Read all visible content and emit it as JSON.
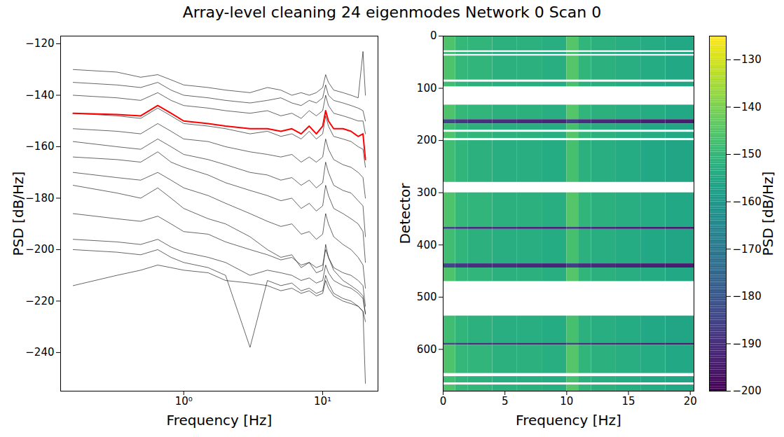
{
  "title": "Array-level cleaning 24 eigenmodes Network 0 Scan 0",
  "chart_data": [
    {
      "type": "line",
      "xlabel": "Frequency [Hz]",
      "ylabel": "PSD [dB/Hz]",
      "log": "x",
      "xlim": [
        0.13,
        25
      ],
      "xticks": [
        {
          "value": 1,
          "label": "10⁰"
        },
        {
          "value": 10,
          "label": "10¹"
        }
      ],
      "ylim": [
        -255,
        -117
      ],
      "yticks": [
        -240,
        -220,
        -200,
        -180,
        -160,
        -140,
        -120
      ],
      "x": [
        0.16,
        0.33,
        0.49,
        0.65,
        0.81,
        1.0,
        1.5,
        2,
        3,
        4,
        5,
        6,
        7,
        8,
        9,
        10,
        10.5,
        11,
        12,
        14,
        16,
        18,
        19.5,
        20.3
      ],
      "series": [
        {
          "color": "black",
          "values": [
            -130,
            -131,
            -133,
            -132,
            -134,
            -136,
            -137,
            -138,
            -139,
            -137,
            -138,
            -140,
            -139,
            -140,
            -139,
            -137,
            -132,
            -135,
            -138,
            -139,
            -140,
            -141,
            -123,
            -140
          ]
        },
        {
          "color": "black",
          "values": [
            -135,
            -136,
            -137,
            -135,
            -138,
            -140,
            -141,
            -142,
            -143,
            -142,
            -141,
            -143,
            -144,
            -142,
            -143,
            -141,
            -136,
            -140,
            -142,
            -143,
            -144,
            -145,
            -146,
            -150
          ]
        },
        {
          "color": "black",
          "values": [
            -140,
            -141,
            -142,
            -139,
            -142,
            -144,
            -145,
            -146,
            -147,
            -146,
            -148,
            -147,
            -149,
            -146,
            -148,
            -146,
            -140,
            -144,
            -147,
            -148,
            -149,
            -150,
            -150,
            -155
          ]
        },
        {
          "color": "black",
          "values": [
            -147,
            -148,
            -149,
            -145,
            -148,
            -151,
            -152,
            -153,
            -155,
            -154,
            -156,
            -155,
            -157,
            -154,
            -157,
            -155,
            -148,
            -152,
            -156,
            -157,
            -158,
            -160,
            -161,
            -168
          ]
        },
        {
          "color": "black",
          "values": [
            -153,
            -154,
            -155,
            -151,
            -154,
            -157,
            -158,
            -160,
            -162,
            -163,
            -164,
            -163,
            -166,
            -164,
            -166,
            -164,
            -157,
            -161,
            -165,
            -167,
            -168,
            -170,
            -172,
            -180
          ]
        },
        {
          "color": "black",
          "values": [
            -158,
            -160,
            -161,
            -157,
            -160,
            -163,
            -165,
            -167,
            -170,
            -171,
            -173,
            -172,
            -175,
            -173,
            -176,
            -174,
            -166,
            -170,
            -175,
            -177,
            -178,
            -181,
            -183,
            -195
          ]
        },
        {
          "color": "black",
          "values": [
            -164,
            -165,
            -166,
            -162,
            -166,
            -168,
            -171,
            -174,
            -177,
            -179,
            -181,
            -180,
            -184,
            -182,
            -185,
            -183,
            -175,
            -179,
            -184,
            -186,
            -188,
            -190,
            -193,
            -205
          ]
        },
        {
          "color": "black",
          "values": [
            -170,
            -172,
            -173,
            -170,
            -173,
            -176,
            -179,
            -182,
            -186,
            -189,
            -191,
            -190,
            -194,
            -193,
            -196,
            -194,
            -186,
            -190,
            -195,
            -198,
            -200,
            -203,
            -206,
            -215
          ]
        },
        {
          "color": "black",
          "values": [
            -175,
            -178,
            -180,
            -176,
            -180,
            -184,
            -188,
            -190,
            -195,
            -200,
            -203,
            -202,
            -207,
            -205,
            -209,
            -208,
            -198,
            -203,
            -208,
            -212,
            -214,
            -216,
            -218,
            -225
          ]
        },
        {
          "color": "black",
          "values": [
            -186,
            -188,
            -189,
            -187,
            -190,
            -193,
            -194,
            -197,
            -200,
            -202,
            -204,
            -203,
            -206,
            -205,
            -207,
            -206,
            -200,
            -203,
            -207,
            -209,
            -210,
            -212,
            -214,
            -222
          ]
        },
        {
          "color": "black",
          "values": [
            -196,
            -197,
            -198,
            -196,
            -199,
            -201,
            -203,
            -205,
            -210,
            -208,
            -209,
            -210,
            -212,
            -211,
            -213,
            -212,
            -206,
            -209,
            -212,
            -214,
            -215,
            -217,
            -219,
            -225
          ]
        },
        {
          "color": "black",
          "values": [
            -200,
            -201,
            -202,
            -200,
            -203,
            -205,
            -207,
            -210,
            -238,
            -212,
            -214,
            -213,
            -216,
            -215,
            -217,
            -216,
            -210,
            -213,
            -217,
            -219,
            -220,
            -222,
            -224,
            -228
          ]
        },
        {
          "color": "black",
          "values": [
            -214,
            -210,
            -208,
            -206,
            -207,
            -208,
            -209,
            -212,
            -213,
            -214,
            -216,
            -215,
            -217,
            -216,
            -218,
            -217,
            -212,
            -215,
            -218,
            -220,
            -221,
            -222,
            -224,
            -252
          ]
        },
        {
          "color": "red",
          "values": [
            -147,
            -147.5,
            -148,
            -144,
            -147,
            -150,
            -151,
            -152,
            -153,
            -153,
            -154,
            -153,
            -155,
            -152,
            -155,
            -152,
            -146,
            -150,
            -153,
            -153,
            -154,
            -156,
            -155,
            -165
          ]
        }
      ]
    },
    {
      "type": "heatmap",
      "xlabel": "Frequency [Hz]",
      "ylabel": "Detector",
      "xlim": [
        0,
        20.3
      ],
      "xticks": [
        0,
        5,
        10,
        15,
        20
      ],
      "ylim": [
        0,
        680
      ],
      "yticks": [
        0,
        100,
        200,
        300,
        400,
        500,
        600
      ],
      "x_edges": [
        0,
        1,
        2,
        4,
        6,
        8,
        10,
        11,
        12,
        14,
        16,
        18,
        20.3
      ],
      "y_edges": [
        0,
        28,
        31,
        35,
        38,
        84,
        88,
        97,
        132,
        160,
        168,
        180,
        184,
        196,
        200,
        280,
        300,
        366,
        370,
        436,
        444,
        470,
        536,
        588,
        592,
        646,
        652,
        664,
        668,
        680
      ],
      "cells": [
        [
          -146,
          -150,
          -151,
          -152,
          -152,
          -153,
          -145,
          -151,
          -152,
          -153,
          -154,
          -155
        ],
        [
          null,
          null,
          null,
          null,
          null,
          null,
          null,
          null,
          null,
          null,
          null,
          null
        ],
        [
          -148,
          -151,
          -152,
          -153,
          -153,
          -154,
          -147,
          -152,
          -153,
          -154,
          -155,
          -156
        ],
        [
          null,
          null,
          null,
          null,
          null,
          null,
          null,
          null,
          null,
          null,
          null,
          null
        ],
        [
          -146,
          -150,
          -151,
          -152,
          -152,
          -153,
          -145,
          -151,
          -152,
          -153,
          -154,
          -155
        ],
        [
          null,
          null,
          null,
          null,
          null,
          null,
          null,
          null,
          null,
          null,
          null,
          null
        ],
        [
          -148,
          -151,
          -152,
          -153,
          -153,
          -154,
          -147,
          -152,
          -153,
          -154,
          -155,
          -156
        ],
        [
          null,
          null,
          null,
          null,
          null,
          null,
          null,
          null,
          null,
          null,
          null,
          null
        ],
        [
          -146,
          -150,
          -151,
          -152,
          -152,
          -153,
          -145,
          -151,
          -152,
          -153,
          -154,
          -155
        ],
        [
          -185,
          -188,
          -190,
          -190,
          -191,
          -192,
          -186,
          -190,
          -191,
          -192,
          -193,
          -194
        ],
        [
          -148,
          -151,
          -152,
          -153,
          -153,
          -154,
          -147,
          -152,
          -153,
          -154,
          -155,
          -156
        ],
        [
          null,
          null,
          null,
          null,
          null,
          null,
          null,
          null,
          null,
          null,
          null,
          null
        ],
        [
          -146,
          -150,
          -151,
          -152,
          -152,
          -153,
          -145,
          -151,
          -152,
          -153,
          -154,
          -155
        ],
        [
          null,
          null,
          null,
          null,
          null,
          null,
          null,
          null,
          null,
          null,
          null,
          null
        ],
        [
          -148,
          -151,
          -152,
          -153,
          -153,
          -154,
          -147,
          -152,
          -153,
          -154,
          -155,
          -156
        ],
        [
          null,
          null,
          null,
          null,
          null,
          null,
          null,
          null,
          null,
          null,
          null,
          null
        ],
        [
          -146,
          -150,
          -151,
          -152,
          -152,
          -153,
          -145,
          -151,
          -152,
          -153,
          -154,
          -155
        ],
        [
          -185,
          -188,
          -190,
          -190,
          -191,
          -192,
          -186,
          -190,
          -191,
          -192,
          -193,
          -194
        ],
        [
          -148,
          -151,
          -152,
          -153,
          -153,
          -154,
          -147,
          -152,
          -153,
          -154,
          -155,
          -156
        ],
        [
          -185,
          -188,
          -190,
          -190,
          -191,
          -192,
          -186,
          -190,
          -191,
          -192,
          -193,
          -194
        ],
        [
          -146,
          -150,
          -151,
          -152,
          -152,
          -153,
          -145,
          -151,
          -152,
          -153,
          -154,
          -155
        ],
        [
          null,
          null,
          null,
          null,
          null,
          null,
          null,
          null,
          null,
          null,
          null,
          null
        ],
        [
          -148,
          -151,
          -152,
          -153,
          -153,
          -154,
          -147,
          -152,
          -153,
          -154,
          -155,
          -156
        ],
        [
          -185,
          -188,
          -190,
          -190,
          -191,
          -192,
          -186,
          -190,
          -191,
          -192,
          -193,
          -194
        ],
        [
          -146,
          -150,
          -151,
          -152,
          -152,
          -153,
          -145,
          -151,
          -152,
          -153,
          -154,
          -155
        ],
        [
          null,
          null,
          null,
          null,
          null,
          null,
          null,
          null,
          null,
          null,
          null,
          null
        ],
        [
          -148,
          -151,
          -152,
          -153,
          -153,
          -154,
          -147,
          -152,
          -153,
          -154,
          -155,
          -156
        ],
        [
          null,
          null,
          null,
          null,
          null,
          null,
          null,
          null,
          null,
          null,
          null,
          null
        ],
        [
          -146,
          -150,
          -151,
          -152,
          -152,
          -153,
          -145,
          -151,
          -152,
          -153,
          -154,
          -155
        ]
      ],
      "colorbar": {
        "label": "PSD [dB/Hz]",
        "range": [
          -200,
          -125
        ],
        "ticks": [
          -200,
          -190,
          -180,
          -170,
          -160,
          -150,
          -140,
          -130
        ],
        "color": "viridis"
      }
    }
  ]
}
